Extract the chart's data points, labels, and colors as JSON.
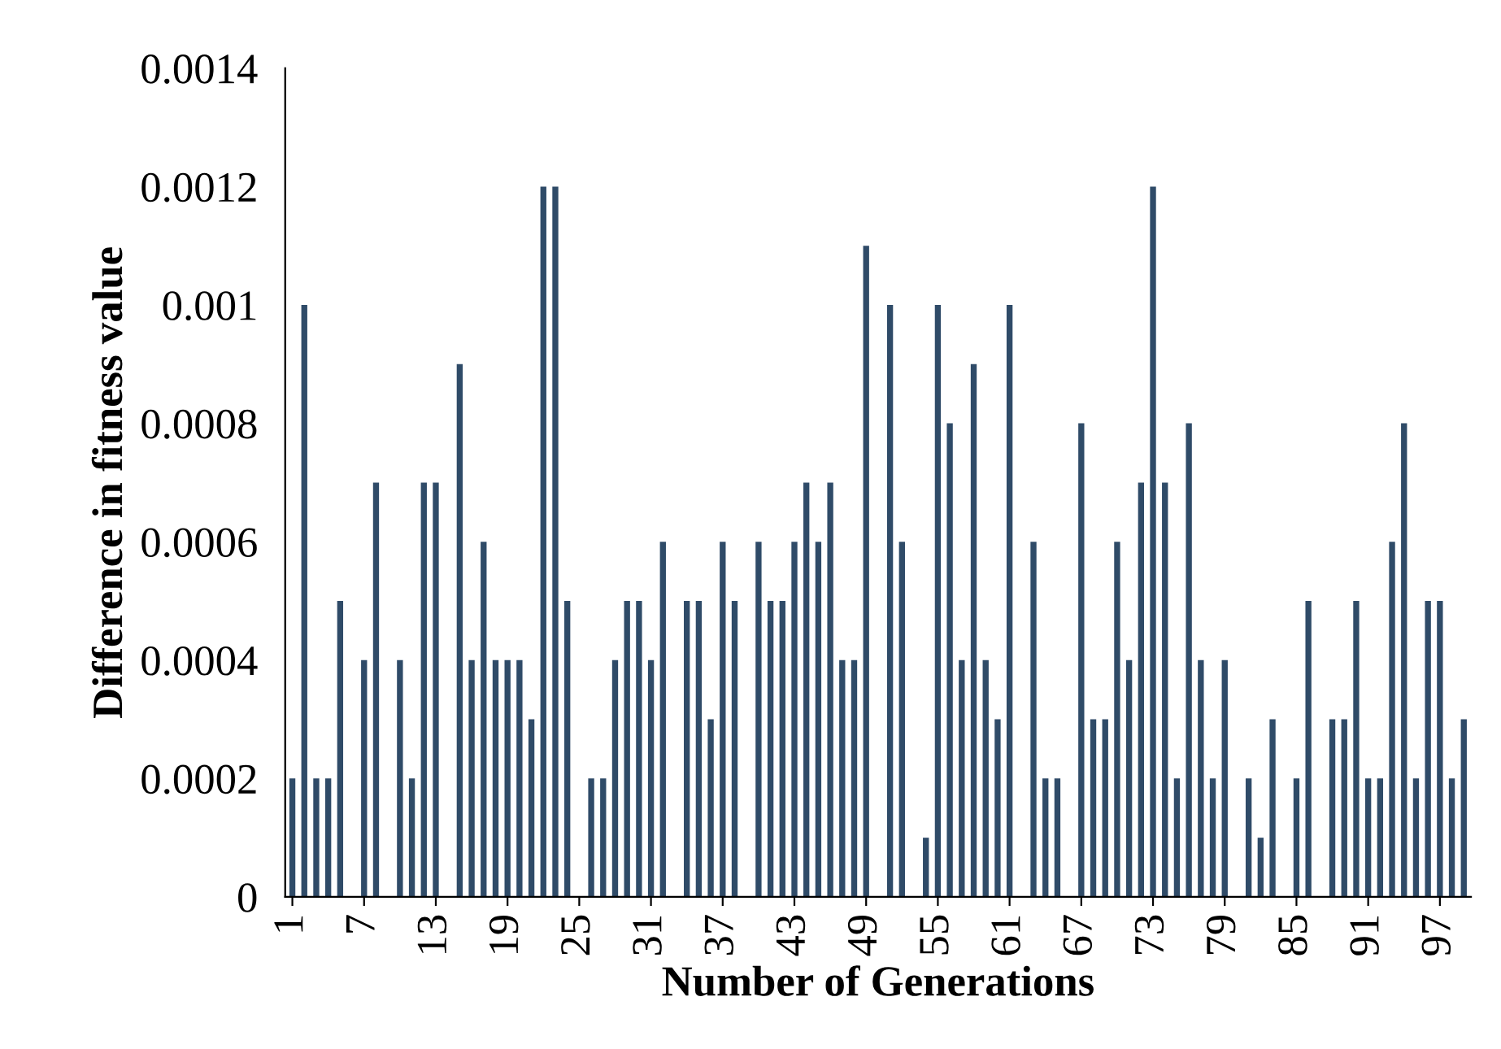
{
  "chart_data": {
    "type": "bar",
    "xlabel": "Number of Generations",
    "ylabel": "Difference in fitness value",
    "categories": [
      "1",
      null,
      null,
      null,
      null,
      null,
      "7",
      null,
      null,
      null,
      null,
      null,
      "13",
      null,
      null,
      null,
      null,
      null,
      "19",
      null,
      null,
      null,
      null,
      null,
      "25",
      null,
      null,
      null,
      null,
      null,
      "31",
      null,
      null,
      null,
      null,
      null,
      "37",
      null,
      null,
      null,
      null,
      null,
      "43",
      null,
      null,
      null,
      null,
      null,
      "49",
      null,
      null,
      null,
      null,
      null,
      "55",
      null,
      null,
      null,
      null,
      null,
      "61",
      null,
      null,
      null,
      null,
      null,
      "67",
      null,
      null,
      null,
      null,
      null,
      "73",
      null,
      null,
      null,
      null,
      null,
      "79",
      null,
      null,
      null,
      null,
      null,
      "85",
      null,
      null,
      null,
      null,
      null,
      "91",
      null,
      null,
      null,
      null,
      null,
      "97",
      null,
      null
    ],
    "values": [
      0.0002,
      0.001,
      0.0002,
      0.0002,
      0.0005,
      0,
      0.0004,
      0.0007,
      0,
      0.0004,
      0.0002,
      0.0007,
      0.0007,
      0,
      0.0009,
      0.0004,
      0.0006,
      0.0004,
      0.0004,
      0.0004,
      0.0003,
      0.0012,
      0.0012,
      0.0005,
      0,
      0.0002,
      0.0002,
      0.0004,
      0.0005,
      0.0005,
      0.0004,
      0.0006,
      0,
      0.0005,
      0.0005,
      0.0003,
      0.0006,
      0.0005,
      0,
      0.0006,
      0.0005,
      0.0005,
      0.0006,
      0.0007,
      0.0006,
      0.0007,
      0.0004,
      0.0004,
      0.0011,
      0,
      0.001,
      0.0006,
      0,
      0.0001,
      0.001,
      0.0008,
      0.0004,
      0.0009,
      0.0004,
      0.0003,
      0.001,
      0,
      0.0006,
      0.0002,
      0.0002,
      0,
      0.0008,
      0.0003,
      0.0003,
      0.0006,
      0.0004,
      0.0007,
      0.0012,
      0.0007,
      0.0002,
      0.0008,
      0.0004,
      0.0002,
      0.0004,
      0,
      0.0002,
      0.0001,
      0.0003,
      0,
      0.0002,
      0.0005,
      0,
      0.0003,
      0.0003,
      0.0005,
      0.0002,
      0.0002,
      0.0006,
      0.0008,
      0.0002,
      0.0005,
      0.0005,
      0.0002,
      0.0003
    ],
    "color": "#2f4b68",
    "ylim": [
      0,
      0.0014
    ],
    "yticks": [
      0,
      0.0002,
      0.0004,
      0.0006,
      0.0008,
      0.001,
      0.0012,
      0.0014
    ],
    "grid": false,
    "legend": false
  }
}
